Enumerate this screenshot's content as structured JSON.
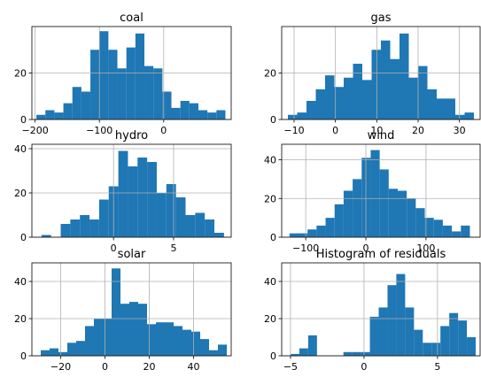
{
  "figure_title": "",
  "chart_data": [
    {
      "type": "bar",
      "title": "coal",
      "bar_color": "#1f77b4",
      "grid": true,
      "xlim": [
        -205,
        105
      ],
      "ylim": [
        0,
        40
      ],
      "xticks": [
        -200,
        -100,
        0
      ],
      "yticks": [
        0,
        20
      ],
      "bin_edges": [
        -198,
        -184,
        -170,
        -156,
        -142,
        -128,
        -114,
        -100,
        -86,
        -72,
        -58,
        -44,
        -30,
        -16,
        -2,
        12,
        26,
        40,
        54,
        68,
        82,
        96
      ],
      "counts": [
        2,
        4,
        3,
        7,
        14,
        12,
        30,
        38,
        30,
        22,
        31,
        37,
        23,
        22,
        12,
        5,
        8,
        7,
        4,
        3,
        4
      ]
    },
    {
      "type": "bar",
      "title": "gas",
      "bar_color": "#1f77b4",
      "grid": true,
      "xlim": [
        -13,
        35
      ],
      "ylim": [
        0,
        40
      ],
      "xticks": [
        -10,
        0,
        10,
        20,
        30
      ],
      "yticks": [
        0,
        20
      ],
      "bin_edges": [
        -11.5,
        -9.25,
        -7,
        -4.75,
        -2.5,
        -0.25,
        2,
        4.25,
        6.5,
        8.75,
        11,
        13.25,
        15.5,
        17.75,
        20,
        22.25,
        24.5,
        26.75,
        29,
        31.25,
        33.5
      ],
      "counts": [
        2,
        3,
        8,
        13,
        19,
        14,
        18,
        24,
        17,
        30,
        34,
        26,
        37,
        18,
        23,
        13,
        9,
        9,
        2,
        3
      ]
    },
    {
      "type": "bar",
      "title": "hydro",
      "bar_color": "#1f77b4",
      "grid": true,
      "xlim": [
        -6.8,
        9.8
      ],
      "ylim": [
        0,
        42
      ],
      "xticks": [
        0,
        5
      ],
      "yticks": [
        0,
        20,
        40
      ],
      "bin_edges": [
        -6,
        -5.2,
        -4.4,
        -3.6,
        -2.8,
        -2,
        -1.2,
        -0.4,
        0.4,
        1.2,
        2,
        2.8,
        3.6,
        4.4,
        5.2,
        6,
        6.8,
        7.6,
        8.4,
        9.2
      ],
      "counts": [
        1,
        0,
        6,
        8,
        10,
        8,
        17,
        23,
        39,
        32,
        36,
        34,
        20,
        24,
        18,
        10,
        11,
        8,
        2
      ]
    },
    {
      "type": "bar",
      "title": "wind",
      "bar_color": "#1f77b4",
      "grid": true,
      "xlim": [
        -140,
        190
      ],
      "ylim": [
        0,
        48
      ],
      "xticks": [
        -100,
        0,
        100
      ],
      "yticks": [
        0,
        20,
        40
      ],
      "bin_edges": [
        -127,
        -112,
        -97,
        -82,
        -67,
        -52,
        -37,
        -22,
        -7,
        8,
        23,
        38,
        53,
        68,
        83,
        98,
        113,
        128,
        143,
        158,
        173
      ],
      "counts": [
        2,
        2,
        4,
        6,
        10,
        17,
        24,
        30,
        41,
        45,
        35,
        25,
        24,
        20,
        15,
        10,
        9,
        6,
        3,
        6
      ]
    },
    {
      "type": "bar",
      "title": "solar",
      "bar_color": "#1f77b4",
      "grid": true,
      "xlim": [
        -33,
        57
      ],
      "ylim": [
        0,
        50
      ],
      "xticks": [
        -20,
        0,
        20,
        40
      ],
      "yticks": [
        0,
        20,
        40
      ],
      "bin_edges": [
        -29,
        -25,
        -21,
        -17,
        -13,
        -9,
        -5,
        -1,
        3,
        7,
        11,
        15,
        19,
        23,
        27,
        31,
        35,
        39,
        43,
        47,
        51,
        55
      ],
      "counts": [
        3,
        4,
        2,
        7,
        8,
        16,
        20,
        20,
        47,
        28,
        29,
        28,
        17,
        18,
        18,
        16,
        14,
        13,
        9,
        3,
        6
      ]
    },
    {
      "type": "bar",
      "title": "Histogram of residuals",
      "bar_color": "#1f77b4",
      "grid": true,
      "xlim": [
        -5.6,
        7.9
      ],
      "ylim": [
        0,
        50
      ],
      "xticks": [
        -5,
        0,
        5
      ],
      "yticks": [
        0,
        20,
        40
      ],
      "bin_edges": [
        -5,
        -4.4,
        -3.8,
        -3.2,
        -2.6,
        -2,
        -1.4,
        -0.8,
        -0.2,
        0.4,
        1,
        1.6,
        2.2,
        2.8,
        3.4,
        4,
        4.6,
        5.2,
        5.8,
        6.4,
        7,
        7.6
      ],
      "counts": [
        1,
        4,
        11,
        0,
        0,
        0,
        2,
        2,
        2,
        21,
        26,
        38,
        44,
        26,
        14,
        7,
        7,
        16,
        23,
        19,
        10
      ]
    }
  ]
}
